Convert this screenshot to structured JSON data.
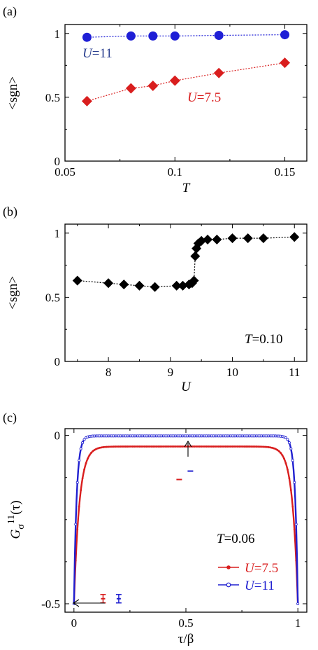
{
  "chart_data": [
    {
      "panel": "(a)",
      "type": "scatter",
      "xlabel": "T",
      "ylabel": "<sgn>",
      "xlim": [
        0.05,
        0.16
      ],
      "ylim": [
        0,
        1.07
      ],
      "xticks": [
        "0.05",
        "0.1",
        "0.15"
      ],
      "yticks": [
        "0",
        "0.5",
        "1"
      ],
      "grid": false,
      "series": [
        {
          "name": "U=11",
          "label_var": "U",
          "label_val": "=11",
          "color": "#1f1fd6",
          "label_color": "#2a3f8f",
          "marker": "circle",
          "x": [
            0.06,
            0.08,
            0.09,
            0.1,
            0.12,
            0.15
          ],
          "y": [
            0.97,
            0.98,
            0.98,
            0.98,
            0.985,
            0.99
          ]
        },
        {
          "name": "U=7.5",
          "label_var": "U",
          "label_val": "=7.5",
          "color": "#d91e1e",
          "label_color": "#d91e1e",
          "marker": "diamond",
          "x": [
            0.06,
            0.08,
            0.09,
            0.1,
            0.12,
            0.15
          ],
          "y": [
            0.47,
            0.57,
            0.59,
            0.63,
            0.69,
            0.77
          ]
        }
      ]
    },
    {
      "panel": "(b)",
      "type": "scatter",
      "xlabel": "U",
      "ylabel": "<sgn>",
      "xlim": [
        7.3,
        11.2
      ],
      "ylim": [
        0,
        1.07
      ],
      "xticks": [
        "8",
        "9",
        "10",
        "11"
      ],
      "yticks": [
        "0",
        "0.5",
        "1"
      ],
      "grid": false,
      "annotation_var": "T",
      "annotation_val": "=0.10",
      "series": [
        {
          "color": "#000000",
          "marker": "diamond",
          "x": [
            7.5,
            8.0,
            8.25,
            8.5,
            8.75,
            9.1,
            9.2,
            9.3,
            9.35,
            9.38,
            9.4,
            9.42,
            9.45,
            9.5,
            9.6,
            9.75,
            10.0,
            10.25,
            10.5,
            11.0
          ],
          "y": [
            0.63,
            0.61,
            0.6,
            0.59,
            0.58,
            0.59,
            0.59,
            0.6,
            0.61,
            0.63,
            0.82,
            0.88,
            0.92,
            0.94,
            0.95,
            0.95,
            0.96,
            0.96,
            0.96,
            0.97
          ]
        }
      ]
    },
    {
      "panel": "(c)",
      "type": "line",
      "xlabel": "τ/β",
      "ylabel_main": "G",
      "ylabel_sub": "σ",
      "ylabel_sup": "11",
      "ylabel_tail": "(τ)",
      "xlim": [
        -0.04,
        1.04
      ],
      "ylim": [
        -0.525,
        0.02
      ],
      "xticks": [
        "0",
        "0.5",
        "1"
      ],
      "yticks": [
        "-0.5",
        "0"
      ],
      "grid": false,
      "annotation_var": "T",
      "annotation_val": "=0.06",
      "series": [
        {
          "name": "U=7.5",
          "label_var": "U",
          "label_val": "=7.5",
          "color": "#d91e1e",
          "plateau": -0.033,
          "edge": -0.5,
          "decay": 0.024,
          "point": {
            "x": 0.47,
            "y": -0.131
          },
          "legend_point": {
            "x": 0.13,
            "y": -0.485
          }
        },
        {
          "name": "U=11",
          "label_var": "U",
          "label_val": "=11",
          "color": "#2020d0",
          "plateau": -0.0015,
          "edge": -0.5,
          "decay": 0.012,
          "point": {
            "x": 0.52,
            "y": -0.106
          },
          "legend_point": {
            "x": 0.2,
            "y": -0.485
          }
        }
      ]
    }
  ]
}
